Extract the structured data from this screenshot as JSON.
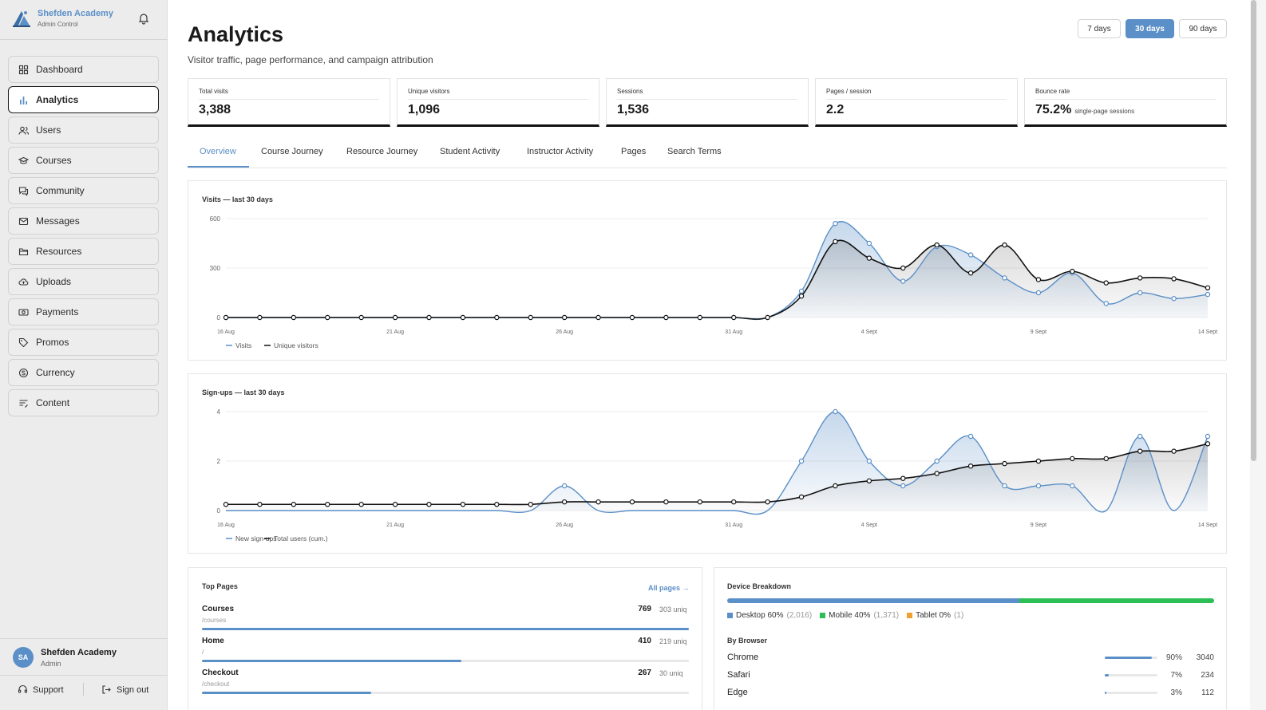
{
  "brand": {
    "name": "Shefden Academy",
    "sub": "Admin Control"
  },
  "nav": [
    {
      "label": "Dashboard",
      "icon": "grid-icon",
      "active": false
    },
    {
      "label": "Analytics",
      "icon": "bar-chart-icon",
      "active": true
    },
    {
      "label": "Users",
      "icon": "users-icon",
      "active": false
    },
    {
      "label": "Courses",
      "icon": "graduation-cap-icon",
      "active": false
    },
    {
      "label": "Community",
      "icon": "chat-icon",
      "active": false
    },
    {
      "label": "Messages",
      "icon": "mail-icon",
      "active": false
    },
    {
      "label": "Resources",
      "icon": "folder-icon",
      "active": false
    },
    {
      "label": "Uploads",
      "icon": "cloud-upload-icon",
      "active": false
    },
    {
      "label": "Payments",
      "icon": "banknote-icon",
      "active": false
    },
    {
      "label": "Promos",
      "icon": "tag-icon",
      "active": false
    },
    {
      "label": "Currency",
      "icon": "currency-exchange-icon",
      "active": false
    },
    {
      "label": "Content",
      "icon": "text-edit-icon",
      "active": false
    }
  ],
  "user": {
    "initials": "SA",
    "name": "Shefden Academy",
    "role": "Admin"
  },
  "footer": {
    "support": "Support",
    "signout": "Sign out"
  },
  "page": {
    "title": "Analytics",
    "subtitle": "Visitor traffic, page performance, and campaign attribution"
  },
  "ranges": [
    {
      "label": "7 days",
      "active": false
    },
    {
      "label": "30 days",
      "active": true
    },
    {
      "label": "90 days",
      "active": false
    }
  ],
  "stats": [
    {
      "label": "Total visits",
      "value": "3,388",
      "note": ""
    },
    {
      "label": "Unique visitors",
      "value": "1,096",
      "note": ""
    },
    {
      "label": "Sessions",
      "value": "1,536",
      "note": ""
    },
    {
      "label": "Pages / session",
      "value": "2.2",
      "note": ""
    },
    {
      "label": "Bounce rate",
      "value": "75.2%",
      "note": "single-page sessions"
    }
  ],
  "tabs": [
    "Overview",
    "Course Journey",
    "Resource Journey",
    "Student Activity",
    "Instructor Activity",
    "Pages",
    "Search Terms"
  ],
  "colors": {
    "accent": "#5b8fc7",
    "dark": "#111111",
    "mobile": "#2bbf55",
    "tablet": "#f0a030"
  },
  "chart_data": [
    {
      "type": "line",
      "title": "Visits — last 30 days",
      "x": [
        "16 Aug",
        "17 Aug",
        "18 Aug",
        "19 Aug",
        "20 Aug",
        "21 Aug",
        "22 Aug",
        "23 Aug",
        "24 Aug",
        "25 Aug",
        "26 Aug",
        "27 Aug",
        "28 Aug",
        "29 Aug",
        "30 Aug",
        "31 Aug",
        "1 Sept",
        "2 Sept",
        "3 Sept",
        "4 Sept",
        "5 Sept",
        "6 Sept",
        "7 Sept",
        "8 Sept",
        "9 Sept",
        "10 Sept",
        "11 Sept",
        "12 Sept",
        "13 Sept",
        "14 Sept"
      ],
      "xticks": [
        "16 Aug",
        "21 Aug",
        "26 Aug",
        "31 Aug",
        "4 Sept",
        "9 Sept",
        "14 Sept"
      ],
      "yticks": [
        0,
        300,
        600
      ],
      "ylim": [
        0,
        600
      ],
      "series": [
        {
          "name": "Visits",
          "values": [
            null,
            null,
            null,
            null,
            null,
            null,
            null,
            null,
            null,
            null,
            null,
            null,
            null,
            null,
            null,
            null,
            null,
            160,
            570,
            450,
            220,
            430,
            380,
            240,
            150,
            270,
            85,
            150,
            115,
            140
          ]
        },
        {
          "name": "Unique visitors",
          "values": [
            0,
            0,
            0,
            0,
            0,
            0,
            0,
            0,
            0,
            0,
            0,
            0,
            0,
            0,
            0,
            0,
            0,
            130,
            460,
            360,
            300,
            440,
            270,
            440,
            230,
            280,
            210,
            240,
            235,
            180
          ]
        }
      ],
      "legend": "bottom-left",
      "grid": true
    },
    {
      "type": "line",
      "title": "Sign-ups — last 30 days",
      "x": [
        "16 Aug",
        "17 Aug",
        "18 Aug",
        "19 Aug",
        "20 Aug",
        "21 Aug",
        "22 Aug",
        "23 Aug",
        "24 Aug",
        "25 Aug",
        "26 Aug",
        "27 Aug",
        "28 Aug",
        "29 Aug",
        "30 Aug",
        "31 Aug",
        "1 Sept",
        "2 Sept",
        "3 Sept",
        "4 Sept",
        "5 Sept",
        "6 Sept",
        "7 Sept",
        "8 Sept",
        "9 Sept",
        "10 Sept",
        "11 Sept",
        "12 Sept",
        "13 Sept",
        "14 Sept"
      ],
      "xticks": [
        "16 Aug",
        "21 Aug",
        "26 Aug",
        "31 Aug",
        "4 Sept",
        "9 Sept",
        "14 Sept"
      ],
      "yticks": [
        0,
        2,
        4
      ],
      "ylim": [
        0,
        4
      ],
      "series": [
        {
          "name": "New sign-ups",
          "values": [
            null,
            null,
            null,
            null,
            null,
            null,
            null,
            null,
            null,
            null,
            1,
            null,
            null,
            null,
            null,
            null,
            null,
            2,
            4,
            2,
            1,
            2,
            3,
            1,
            1,
            1,
            null,
            3,
            null,
            3
          ]
        },
        {
          "name": "Total users (cum.)",
          "values": [
            0.25,
            0.25,
            0.25,
            0.25,
            0.25,
            0.25,
            0.25,
            0.25,
            0.25,
            0.25,
            0.35,
            0.35,
            0.35,
            0.35,
            0.35,
            0.35,
            0.35,
            0.55,
            1.0,
            1.2,
            1.3,
            1.5,
            1.8,
            1.9,
            2.0,
            2.1,
            2.1,
            2.4,
            2.4,
            2.7
          ]
        }
      ],
      "legend": "bottom-left",
      "grid": true
    }
  ],
  "top_pages": {
    "title": "Top Pages",
    "link": "All pages →",
    "rows": [
      {
        "name": "Courses",
        "path": "/courses",
        "count": "769",
        "uniq": "303 uniq",
        "fraction": 1.0
      },
      {
        "name": "Home",
        "path": "/",
        "count": "410",
        "uniq": "219 uniq",
        "fraction": 0.533
      },
      {
        "name": "Checkout",
        "path": "/checkout",
        "count": "267",
        "uniq": "30 uniq",
        "fraction": 0.347
      }
    ]
  },
  "devices": {
    "title": "Device Breakdown",
    "items": [
      {
        "name": "Desktop",
        "pct": "60%",
        "count": "(2,016)",
        "fraction": 0.6,
        "color": "#5b8fc7"
      },
      {
        "name": "Mobile",
        "pct": "40%",
        "count": "(1,371)",
        "fraction": 0.4,
        "color": "#2bbf55"
      },
      {
        "name": "Tablet",
        "pct": "0%",
        "count": "(1)",
        "fraction": 0.0,
        "color": "#f0a030"
      }
    ],
    "browser_title": "By Browser",
    "browsers": [
      {
        "name": "Chrome",
        "pct": "90%",
        "count": "3040",
        "fraction": 0.9
      },
      {
        "name": "Safari",
        "pct": "7%",
        "count": "234",
        "fraction": 0.07
      },
      {
        "name": "Edge",
        "pct": "3%",
        "count": "112",
        "fraction": 0.03
      }
    ]
  }
}
